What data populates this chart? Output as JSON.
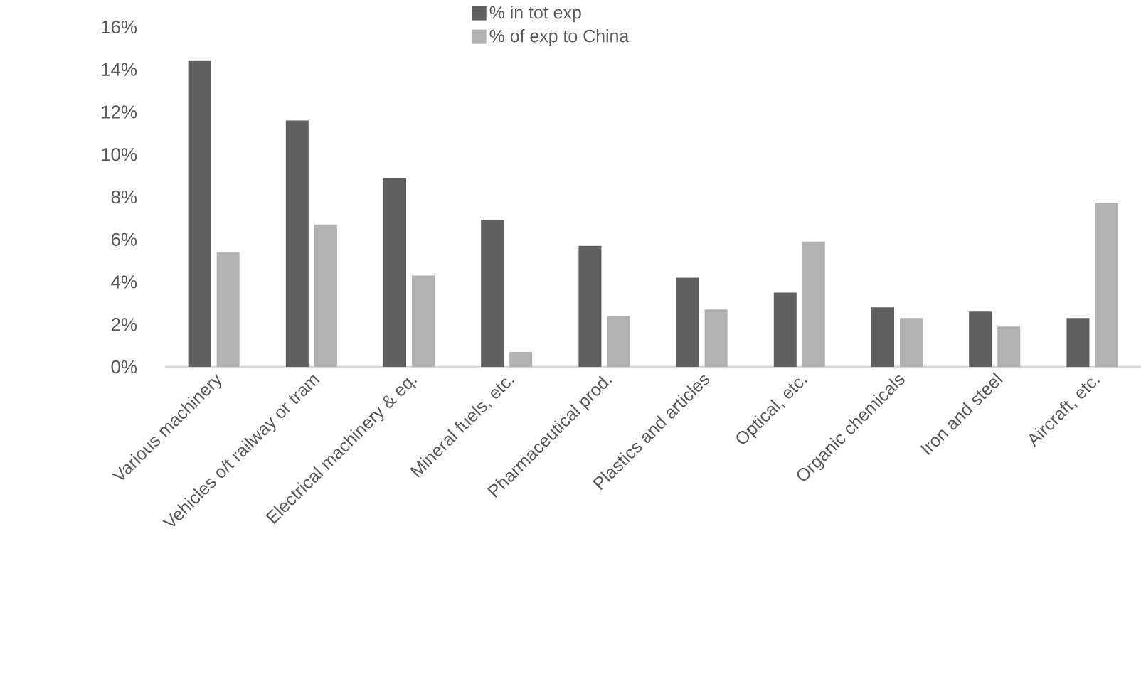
{
  "chart_data": {
    "type": "bar",
    "categories": [
      "Various machinery",
      "Vehicles o/t railway or tram",
      "Electrical machinery & eq.",
      "Mineral fuels, etc.",
      "Pharmaceutical prod.",
      "Plastics and articles",
      "Optical, etc.",
      "Organic chemicals",
      "Iron and steel",
      "Aircraft, etc."
    ],
    "series": [
      {
        "name": "% in tot exp",
        "color": "#606060",
        "values": [
          14.4,
          11.6,
          8.9,
          6.9,
          5.7,
          4.2,
          3.5,
          2.8,
          2.6,
          2.3
        ]
      },
      {
        "name": "% of exp to China",
        "color": "#b2b2b2",
        "values": [
          5.4,
          6.7,
          4.3,
          0.7,
          2.4,
          2.7,
          5.9,
          2.3,
          1.9,
          7.7
        ]
      }
    ],
    "ylim": [
      0,
      16
    ],
    "yticks": [
      {
        "value": 0,
        "label": "0%"
      },
      {
        "value": 2,
        "label": "2%"
      },
      {
        "value": 4,
        "label": "4%"
      },
      {
        "value": 6,
        "label": "6%"
      },
      {
        "value": 8,
        "label": "8%"
      },
      {
        "value": 10,
        "label": "10%"
      },
      {
        "value": 12,
        "label": "12%"
      },
      {
        "value": 14,
        "label": "14%"
      },
      {
        "value": 16,
        "label": "16%"
      }
    ],
    "legend": "top"
  }
}
